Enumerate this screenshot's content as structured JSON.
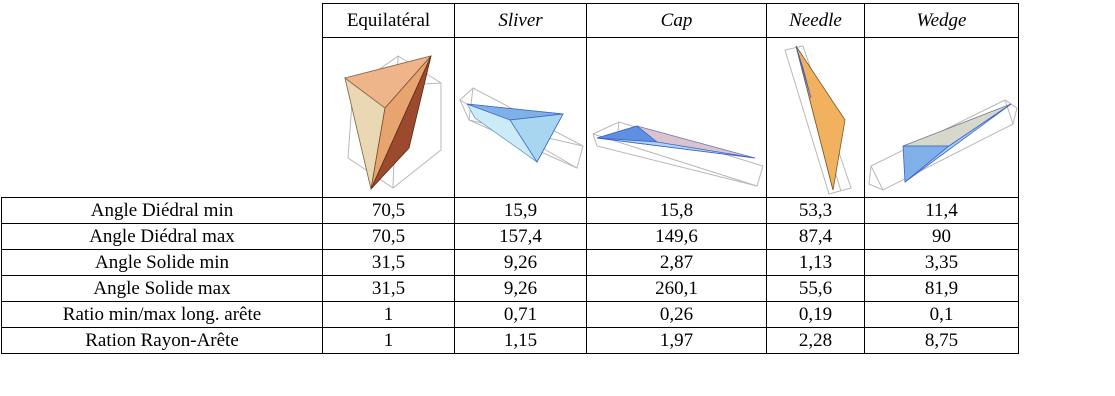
{
  "columns": [
    {
      "label": "Equilatéral",
      "italic": false
    },
    {
      "label": "Sliver",
      "italic": true
    },
    {
      "label": "Cap",
      "italic": true
    },
    {
      "label": "Needle",
      "italic": true
    },
    {
      "label": "Wedge",
      "italic": true
    }
  ],
  "rows": [
    {
      "label": "Angle Diédral min",
      "values": [
        "70,5",
        "15,9",
        "15,8",
        "53,3",
        "11,4"
      ]
    },
    {
      "label": "Angle Diédral max",
      "values": [
        "70,5",
        "157,4",
        "149,6",
        "87,4",
        "90"
      ]
    },
    {
      "label": "Angle Solide min",
      "values": [
        "31,5",
        "9,26",
        "2,87",
        "1,13",
        "3,35"
      ]
    },
    {
      "label": "Angle Solide max",
      "values": [
        "31,5",
        "9,26",
        "260,1",
        "55,6",
        "81,9"
      ]
    },
    {
      "label": "Ratio min/max long. arête",
      "values": [
        "1",
        "0,71",
        "0,26",
        "0,19",
        "0,1"
      ]
    },
    {
      "label": "Ration Rayon-Arête",
      "values": [
        "1",
        "1,15",
        "1,97",
        "2,28",
        "8,75"
      ]
    }
  ],
  "colors": {
    "orange_light": "#f4c49a",
    "orange_mid": "#e8a46e",
    "brown_dark": "#9c4a2e",
    "blue_light": "#bfe4f5",
    "blue_mid": "#7fb0e8",
    "blue_dark": "#3a63c8",
    "box_gray": "#b8b8b8"
  }
}
